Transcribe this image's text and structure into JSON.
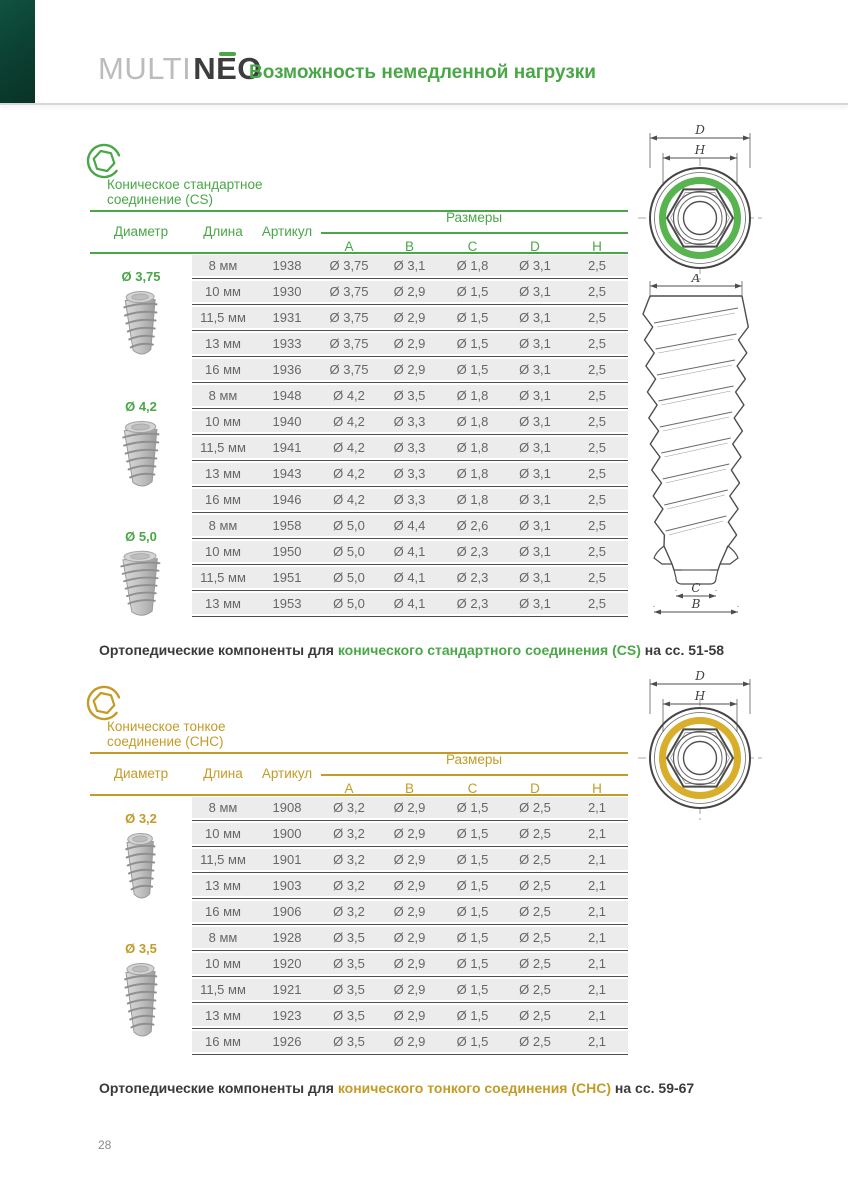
{
  "header": {
    "logo_multi": "MULTI",
    "logo_neo": "NEO",
    "tagline": "Возможность немедленной нагрузки"
  },
  "page_number": "28",
  "colors": {
    "brand_green": "#4aa748",
    "gold": "#c49b27",
    "corner_strip": "#0d4434"
  },
  "table_headers": {
    "diameter": "Диаметр",
    "length": "Длина",
    "article": "Артикул",
    "sizes": "Размеры",
    "size_cols": [
      "A",
      "B",
      "C",
      "D",
      "H"
    ]
  },
  "drawing_labels": {
    "d": "D",
    "h": "H",
    "a": "A",
    "b": "B",
    "c": "C"
  },
  "sections": [
    {
      "code": "cs",
      "accent": "#4aa748",
      "ring": "#57b44f",
      "title_line1": "Коническое стандартное",
      "title_line2": "соединение (CS)",
      "groups": [
        {
          "diameter": "Ø 3,75",
          "rows": [
            [
              "8 мм",
              "1938",
              "Ø 3,75",
              "Ø 3,1",
              "Ø 1,8",
              "Ø 3,1",
              "2,5"
            ],
            [
              "10 мм",
              "1930",
              "Ø 3,75",
              "Ø 2,9",
              "Ø 1,5",
              "Ø 3,1",
              "2,5"
            ],
            [
              "11,5 мм",
              "1931",
              "Ø 3,75",
              "Ø 2,9",
              "Ø 1,5",
              "Ø 3,1",
              "2,5"
            ],
            [
              "13 мм",
              "1933",
              "Ø 3,75",
              "Ø 2,9",
              "Ø 1,5",
              "Ø 3,1",
              "2,5"
            ],
            [
              "16 мм",
              "1936",
              "Ø 3,75",
              "Ø 2,9",
              "Ø 1,5",
              "Ø 3,1",
              "2,5"
            ]
          ]
        },
        {
          "diameter": "Ø 4,2",
          "rows": [
            [
              "8 мм",
              "1948",
              "Ø 4,2",
              "Ø 3,5",
              "Ø 1,8",
              "Ø 3,1",
              "2,5"
            ],
            [
              "10 мм",
              "1940",
              "Ø 4,2",
              "Ø 3,3",
              "Ø 1,8",
              "Ø 3,1",
              "2,5"
            ],
            [
              "11,5 мм",
              "1941",
              "Ø 4,2",
              "Ø 3,3",
              "Ø 1,8",
              "Ø 3,1",
              "2,5"
            ],
            [
              "13 мм",
              "1943",
              "Ø 4,2",
              "Ø 3,3",
              "Ø 1,8",
              "Ø 3,1",
              "2,5"
            ],
            [
              "16 мм",
              "1946",
              "Ø 4,2",
              "Ø 3,3",
              "Ø 1,8",
              "Ø 3,1",
              "2,5"
            ]
          ]
        },
        {
          "diameter": "Ø 5,0",
          "rows": [
            [
              "8 мм",
              "1958",
              "Ø 5,0",
              "Ø 4,4",
              "Ø 2,6",
              "Ø 3,1",
              "2,5"
            ],
            [
              "10 мм",
              "1950",
              "Ø 5,0",
              "Ø 4,1",
              "Ø 2,3",
              "Ø 3,1",
              "2,5"
            ],
            [
              "11,5 мм",
              "1951",
              "Ø 5,0",
              "Ø 4,1",
              "Ø 2,3",
              "Ø 3,1",
              "2,5"
            ],
            [
              "13 мм",
              "1953",
              "Ø 5,0",
              "Ø 4,1",
              "Ø 2,3",
              "Ø 3,1",
              "2,5"
            ]
          ]
        }
      ],
      "footer": {
        "prefix": "Ортопедические компоненты для ",
        "highlight": "конического стандартного соединения (CS)",
        "suffix": " на сс. 51-58"
      }
    },
    {
      "code": "chc",
      "accent": "#c49b27",
      "ring": "#d8ae2b",
      "title_line1": "Коническое тонкое",
      "title_line2": "соединение (СНС)",
      "groups": [
        {
          "diameter": "Ø 3,2",
          "rows": [
            [
              "8 мм",
              "1908",
              "Ø 3,2",
              "Ø 2,9",
              "Ø 1,5",
              "Ø 2,5",
              "2,1"
            ],
            [
              "10 мм",
              "1900",
              "Ø 3,2",
              "Ø 2,9",
              "Ø 1,5",
              "Ø 2,5",
              "2,1"
            ],
            [
              "11,5 мм",
              "1901",
              "Ø 3,2",
              "Ø 2,9",
              "Ø 1,5",
              "Ø 2,5",
              "2,1"
            ],
            [
              "13 мм",
              "1903",
              "Ø 3,2",
              "Ø 2,9",
              "Ø 1,5",
              "Ø 2,5",
              "2,1"
            ],
            [
              "16 мм",
              "1906",
              "Ø 3,2",
              "Ø 2,9",
              "Ø 1,5",
              "Ø 2,5",
              "2,1"
            ]
          ]
        },
        {
          "diameter": "Ø 3,5",
          "rows": [
            [
              "8 мм",
              "1928",
              "Ø 3,5",
              "Ø 2,9",
              "Ø 1,5",
              "Ø 2,5",
              "2,1"
            ],
            [
              "10 мм",
              "1920",
              "Ø 3,5",
              "Ø 2,9",
              "Ø 1,5",
              "Ø 2,5",
              "2,1"
            ],
            [
              "11,5 мм",
              "1921",
              "Ø 3,5",
              "Ø 2,9",
              "Ø 1,5",
              "Ø 2,5",
              "2,1"
            ],
            [
              "13 мм",
              "1923",
              "Ø 3,5",
              "Ø 2,9",
              "Ø 1,5",
              "Ø 2,5",
              "2,1"
            ],
            [
              "16 мм",
              "1926",
              "Ø 3,5",
              "Ø 2,9",
              "Ø 1,5",
              "Ø 2,5",
              "2,1"
            ]
          ]
        }
      ],
      "footer": {
        "prefix": "Ортопедические компоненты для ",
        "highlight": "конического тонкого соединения (СНС)",
        "suffix": " на сс. 59-67"
      }
    }
  ]
}
